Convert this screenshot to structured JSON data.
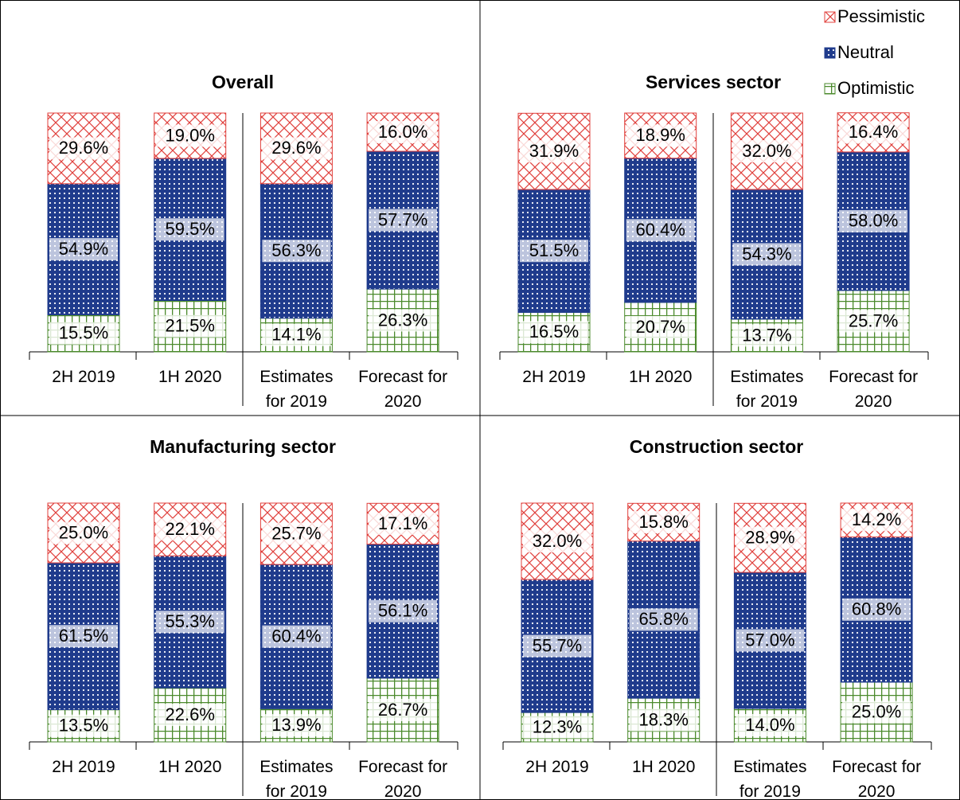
{
  "chart_data": [
    {
      "type": "bar",
      "title": "Overall",
      "categories": [
        "2H 2019",
        "1H 2020",
        "Estimates for 2019",
        "Forecast for 2020"
      ],
      "ylim": [
        0,
        100
      ],
      "series": [
        {
          "name": "Pessimistic",
          "color": "#e0403c",
          "values": [
            29.6,
            19.0,
            29.6,
            16.0
          ],
          "value_labels": [
            "29.6%",
            "19.0%",
            "29.6%",
            "16.0%"
          ]
        },
        {
          "name": "Neutral",
          "color": "#1f3b8c",
          "values": [
            54.9,
            59.5,
            56.3,
            57.7
          ],
          "value_labels": [
            "54.9%",
            "59.5%",
            "56.3%",
            "57.7%"
          ]
        },
        {
          "name": "Optimistic",
          "color": "#4b8a2c",
          "values": [
            15.5,
            21.5,
            14.1,
            26.3
          ],
          "value_labels": [
            "15.5%",
            "21.5%",
            "14.1%",
            "26.3%"
          ]
        }
      ]
    },
    {
      "type": "bar",
      "title": "Services sector",
      "categories": [
        "2H 2019",
        "1H 2020",
        "Estimates for 2019",
        "Forecast for 2020"
      ],
      "ylim": [
        0,
        100
      ],
      "legend": "upper right",
      "series": [
        {
          "name": "Pessimistic",
          "color": "#e0403c",
          "values": [
            31.9,
            18.9,
            32.0,
            16.4
          ],
          "value_labels": [
            "31.9%",
            "18.9%",
            "32.0%",
            "16.4%"
          ]
        },
        {
          "name": "Neutral",
          "color": "#1f3b8c",
          "values": [
            51.5,
            60.4,
            54.3,
            58.0
          ],
          "value_labels": [
            "51.5%",
            "60.4%",
            "54.3%",
            "58.0%"
          ]
        },
        {
          "name": "Optimistic",
          "color": "#4b8a2c",
          "values": [
            16.5,
            20.7,
            13.7,
            25.7
          ],
          "value_labels": [
            "16.5%",
            "20.7%",
            "13.7%",
            "25.7%"
          ]
        }
      ]
    },
    {
      "type": "bar",
      "title": "Manufacturing sector",
      "categories": [
        "2H 2019",
        "1H 2020",
        "Estimates for 2019",
        "Forecast for 2020"
      ],
      "ylim": [
        0,
        100
      ],
      "series": [
        {
          "name": "Pessimistic",
          "color": "#e0403c",
          "values": [
            25.0,
            22.1,
            25.7,
            17.1
          ],
          "value_labels": [
            "25.0%",
            "22.1%",
            "25.7%",
            "17.1%"
          ]
        },
        {
          "name": "Neutral",
          "color": "#1f3b8c",
          "values": [
            61.5,
            55.3,
            60.4,
            56.1
          ],
          "value_labels": [
            "61.5%",
            "55.3%",
            "60.4%",
            "56.1%"
          ]
        },
        {
          "name": "Optimistic",
          "color": "#4b8a2c",
          "values": [
            13.5,
            22.6,
            13.9,
            26.7
          ],
          "value_labels": [
            "13.5%",
            "22.6%",
            "13.9%",
            "26.7%"
          ]
        }
      ]
    },
    {
      "type": "bar",
      "title": "Construction sector",
      "categories": [
        "2H 2019",
        "1H 2020",
        "Estimates for 2019",
        "Forecast for 2020"
      ],
      "ylim": [
        0,
        100
      ],
      "series": [
        {
          "name": "Pessimistic",
          "color": "#e0403c",
          "values": [
            32.0,
            15.8,
            28.9,
            14.2
          ],
          "value_labels": [
            "32.0%",
            "15.8%",
            "28.9%",
            "14.2%"
          ]
        },
        {
          "name": "Neutral",
          "color": "#1f3b8c",
          "values": [
            55.7,
            65.8,
            57.0,
            60.8
          ],
          "value_labels": [
            "55.7%",
            "65.8%",
            "57.0%",
            "60.8%"
          ]
        },
        {
          "name": "Optimistic",
          "color": "#4b8a2c",
          "values": [
            12.3,
            18.3,
            14.0,
            25.0
          ],
          "value_labels": [
            "12.3%",
            "18.3%",
            "14.0%",
            "25.0%"
          ]
        }
      ]
    }
  ]
}
